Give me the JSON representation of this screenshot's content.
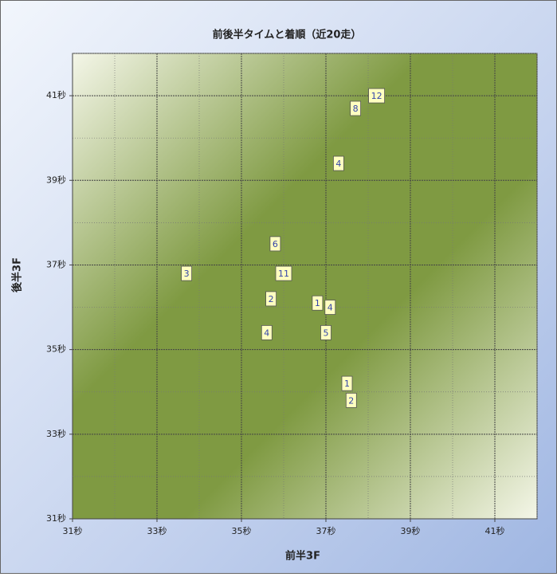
{
  "chart_data": {
    "type": "scatter",
    "title": "前後半タイムと着順（近20走）",
    "x_label": "前半3F",
    "y_label": "後半3F",
    "x": [
      38.2,
      37.7,
      37.3,
      35.8,
      36.0,
      33.7,
      35.7,
      36.8,
      37.1,
      35.6,
      37.0,
      37.5,
      37.6
    ],
    "values": [
      41.0,
      40.7,
      39.4,
      37.5,
      36.8,
      36.8,
      36.2,
      36.1,
      36.0,
      35.4,
      35.4,
      34.2,
      33.8
    ],
    "rank": [
      12,
      8,
      4,
      6,
      11,
      3,
      2,
      1,
      4,
      4,
      5,
      1,
      2
    ],
    "xlim": [
      31,
      42
    ],
    "ylim": [
      31,
      42
    ],
    "xticks": [
      {
        "value": 31,
        "label": "31秒"
      },
      {
        "value": 33,
        "label": "33秒"
      },
      {
        "value": 35,
        "label": "35秒"
      },
      {
        "value": 37,
        "label": "37秒"
      },
      {
        "value": 39,
        "label": "39秒"
      },
      {
        "value": 41,
        "label": "41秒"
      }
    ],
    "yticks": [
      {
        "value": 31,
        "label": "31秒"
      },
      {
        "value": 33,
        "label": "33秒"
      },
      {
        "value": 35,
        "label": "35秒"
      },
      {
        "value": 37,
        "label": "37秒"
      },
      {
        "value": 39,
        "label": "39秒"
      },
      {
        "value": 41,
        "label": "41秒"
      }
    ],
    "grid": true
  }
}
